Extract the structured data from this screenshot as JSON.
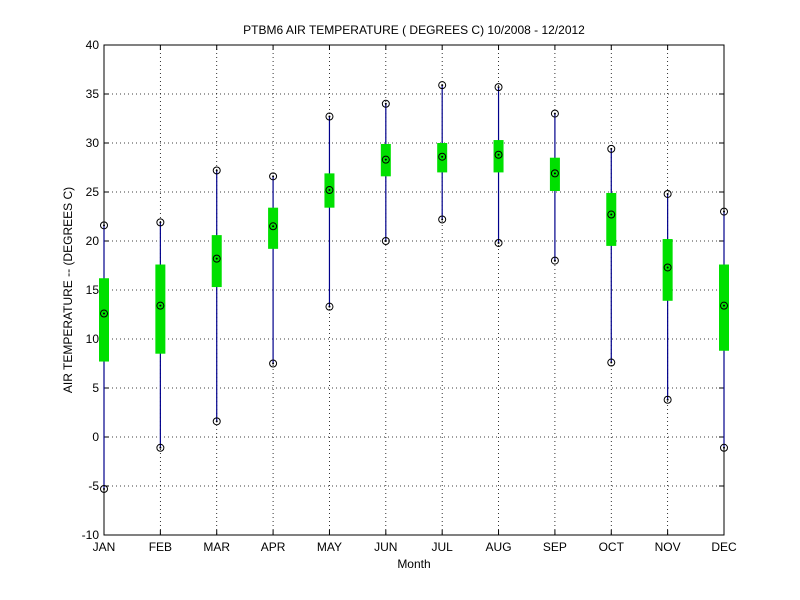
{
  "chart_data": {
    "type": "box",
    "title": "PTBM6  AIR TEMPERATURE ( DEGREES C) 10/2008 - 12/2012",
    "xlabel": "Month",
    "ylabel": "AIR TEMPERATURE -- (DEGREES C)",
    "categories": [
      "JAN",
      "FEB",
      "MAR",
      "APR",
      "MAY",
      "JUN",
      "JUL",
      "AUG",
      "SEP",
      "OCT",
      "NOV",
      "DEC"
    ],
    "ylim": [
      -10,
      40
    ],
    "yticks": [
      -10,
      -5,
      0,
      5,
      10,
      15,
      20,
      25,
      30,
      35,
      40
    ],
    "ytick_labels": [
      "-10",
      "-5",
      "0",
      "5",
      "10",
      "15",
      "20",
      "25",
      "30",
      "35",
      "40"
    ],
    "grid": true,
    "colors": {
      "whisker": "#00008b",
      "box": "#00e000",
      "marker": "#000000"
    },
    "series": {
      "min": [
        -5.3,
        -1.1,
        1.6,
        7.5,
        13.3,
        20.0,
        22.2,
        19.8,
        18.0,
        7.6,
        3.8,
        -1.1
      ],
      "q1": [
        7.7,
        8.5,
        15.3,
        19.2,
        23.4,
        26.6,
        27.0,
        27.0,
        25.1,
        19.5,
        13.9,
        8.8
      ],
      "median": [
        12.6,
        13.4,
        18.2,
        21.5,
        25.2,
        28.3,
        28.6,
        28.8,
        26.9,
        22.7,
        17.3,
        13.4
      ],
      "q3": [
        16.2,
        17.6,
        20.6,
        23.4,
        26.9,
        29.9,
        30.0,
        30.3,
        28.5,
        24.9,
        20.2,
        17.6
      ],
      "max": [
        21.6,
        21.9,
        27.2,
        26.6,
        32.7,
        34.0,
        35.9,
        35.7,
        33.0,
        29.4,
        24.8,
        23.0
      ]
    }
  }
}
